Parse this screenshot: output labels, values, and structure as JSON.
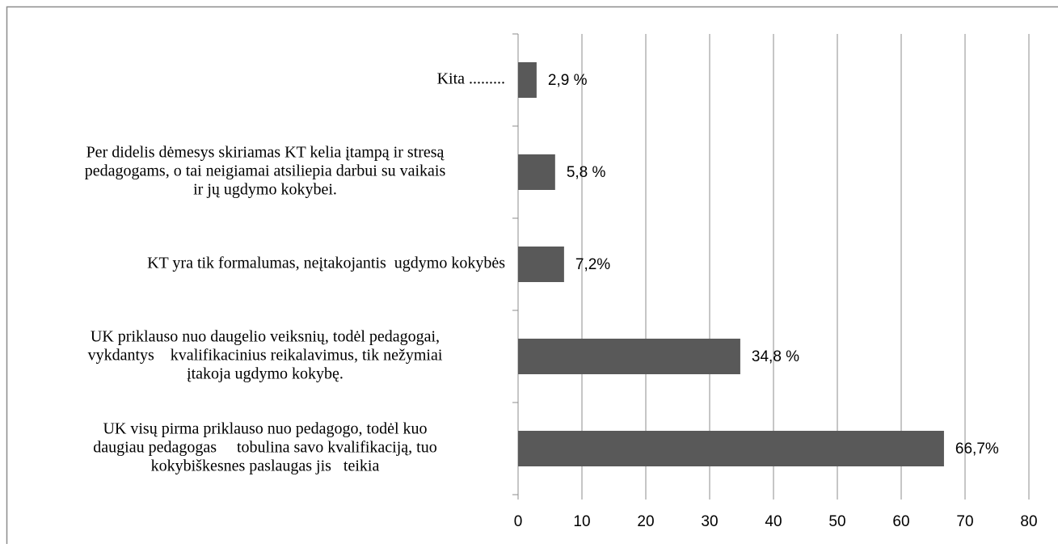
{
  "chart_data": {
    "type": "bar",
    "orientation": "horizontal",
    "categories": [
      [
        "Kita ........."
      ],
      [
        "Per didelis dėmesys skiriamas KT kelia įtampą ir stresą",
        "pedagogams, o tai neigiamai atsiliepia darbui su vaikais",
        "ir jų ugdymo kokybei."
      ],
      [
        "KT yra tik formalumas, neįtakojantis  ugdymo kokybės"
      ],
      [
        "UK priklauso nuo daugelio veiksnių, todėl pedagogai,",
        "vykdantys    kvalifikacinius reikalavimus, tik nežymiai",
        "įtakoja ugdymo kokybę."
      ],
      [
        "UK visų pirma priklauso nuo pedagogo, todėl kuo",
        "daugiau pedagogas     tobulina savo kvalifikaciją, tuo",
        "kokybiškesnes paslaugas jis   teikia"
      ]
    ],
    "values": [
      2.9,
      5.8,
      7.2,
      34.8,
      66.7
    ],
    "value_labels": [
      "2,9 %",
      "5,8 %",
      "7,2%",
      "34,8 %",
      "66,7%"
    ],
    "color": "#595959",
    "xlim": [
      0,
      80
    ],
    "xticks": [
      0,
      10,
      20,
      30,
      40,
      50,
      60,
      70,
      80
    ],
    "grid": true
  }
}
